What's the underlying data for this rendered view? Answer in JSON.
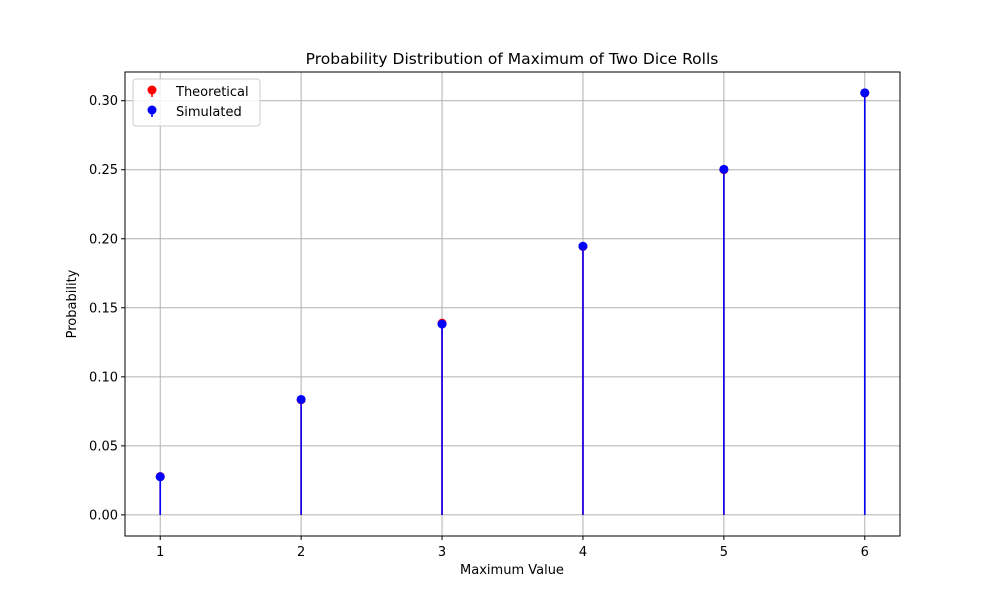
{
  "chart_data": {
    "type": "stem",
    "title": "Probability Distribution of Maximum of Two Dice Rolls",
    "xlabel": "Maximum Value",
    "ylabel": "Probability",
    "x": [
      1,
      2,
      3,
      4,
      5,
      6
    ],
    "xticks": [
      "1",
      "2",
      "3",
      "4",
      "5",
      "6"
    ],
    "yticks": [
      "0.00",
      "0.05",
      "0.10",
      "0.15",
      "0.20",
      "0.25",
      "0.30"
    ],
    "xlim": [
      0.75,
      6.25
    ],
    "ylim": [
      -0.0153,
      0.3208
    ],
    "grid": true,
    "legend_position": "top-left",
    "series": [
      {
        "name": "Theoretical",
        "color": "#ff0000",
        "values": [
          0.0278,
          0.0833,
          0.1389,
          0.1944,
          0.25,
          0.3056
        ]
      },
      {
        "name": "Simulated",
        "color": "#0000ff",
        "values": [
          0.0276,
          0.0836,
          0.1382,
          0.1946,
          0.2503,
          0.3057
        ]
      }
    ]
  }
}
